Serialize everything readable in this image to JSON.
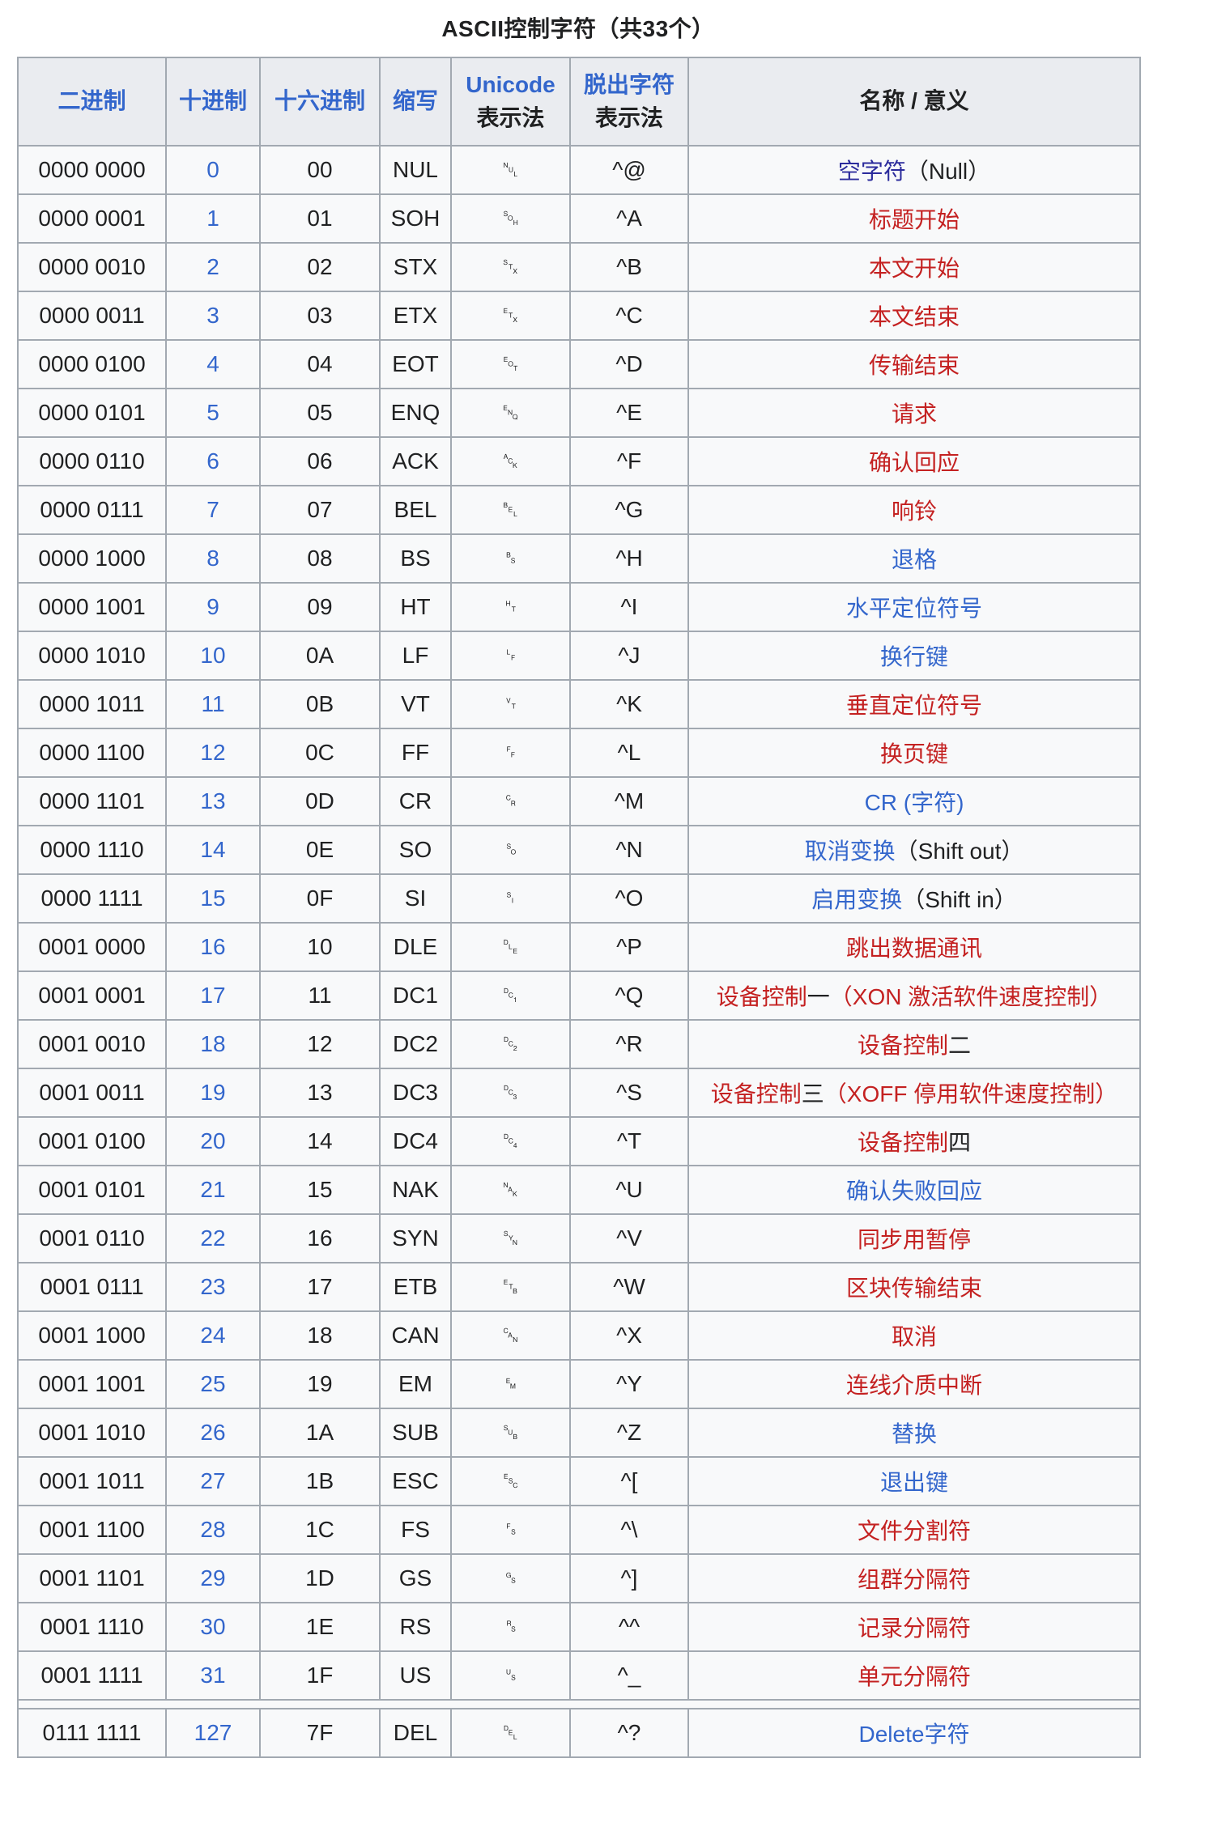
{
  "title": "ASCII控制字符（共33个）",
  "colors": {
    "text": "#202122",
    "link_blue": "#3366cc",
    "link_red": "#c42121",
    "link_visited": "#2b2b9c",
    "border": "#a2a9b1",
    "header_bg": "#eaecf0",
    "row_bg": "#f8f9fa",
    "page_bg": "#ffffff"
  },
  "header": {
    "binary": "二进制",
    "decimal": "十进制",
    "hex": "十六进制",
    "abbr": "缩写",
    "unicode_line1": "Unicode",
    "unicode_line2": "表示法",
    "escape_line1": "脱出字符",
    "escape_line2": "表示法",
    "name": "名称 / 意义"
  },
  "rows": [
    {
      "binary": "0000 0000",
      "decimal": "0",
      "hex": "00",
      "abbr": "NUL",
      "unicode": "␀",
      "caret": "^@",
      "name": [
        {
          "text": "空字符",
          "style": "visited"
        },
        {
          "text": "（Null）",
          "style": "plain"
        }
      ]
    },
    {
      "binary": "0000 0001",
      "decimal": "1",
      "hex": "01",
      "abbr": "SOH",
      "unicode": "␁",
      "caret": "^A",
      "name": [
        {
          "text": "标题开始",
          "style": "red"
        }
      ]
    },
    {
      "binary": "0000 0010",
      "decimal": "2",
      "hex": "02",
      "abbr": "STX",
      "unicode": "␂",
      "caret": "^B",
      "name": [
        {
          "text": "本文开始",
          "style": "red"
        }
      ]
    },
    {
      "binary": "0000 0011",
      "decimal": "3",
      "hex": "03",
      "abbr": "ETX",
      "unicode": "␃",
      "caret": "^C",
      "name": [
        {
          "text": "本文结束",
          "style": "red"
        }
      ]
    },
    {
      "binary": "0000 0100",
      "decimal": "4",
      "hex": "04",
      "abbr": "EOT",
      "unicode": "␄",
      "caret": "^D",
      "name": [
        {
          "text": "传输结束",
          "style": "red"
        }
      ]
    },
    {
      "binary": "0000 0101",
      "decimal": "5",
      "hex": "05",
      "abbr": "ENQ",
      "unicode": "␅",
      "caret": "^E",
      "name": [
        {
          "text": "请求",
          "style": "red"
        }
      ]
    },
    {
      "binary": "0000 0110",
      "decimal": "6",
      "hex": "06",
      "abbr": "ACK",
      "unicode": "␆",
      "caret": "^F",
      "name": [
        {
          "text": "确认回应",
          "style": "red"
        }
      ]
    },
    {
      "binary": "0000 0111",
      "decimal": "7",
      "hex": "07",
      "abbr": "BEL",
      "unicode": "␇",
      "caret": "^G",
      "name": [
        {
          "text": "响铃",
          "style": "red"
        }
      ]
    },
    {
      "binary": "0000 1000",
      "decimal": "8",
      "hex": "08",
      "abbr": "BS",
      "unicode": "␈",
      "caret": "^H",
      "name": [
        {
          "text": "退格",
          "style": "blue"
        }
      ]
    },
    {
      "binary": "0000 1001",
      "decimal": "9",
      "hex": "09",
      "abbr": "HT",
      "unicode": "␉",
      "caret": "^I",
      "name": [
        {
          "text": "水平定位符号",
          "style": "blue"
        }
      ]
    },
    {
      "binary": "0000 1010",
      "decimal": "10",
      "hex": "0A",
      "abbr": "LF",
      "unicode": "␊",
      "caret": "^J",
      "name": [
        {
          "text": "换行键",
          "style": "blue"
        }
      ]
    },
    {
      "binary": "0000 1011",
      "decimal": "11",
      "hex": "0B",
      "abbr": "VT",
      "unicode": "␋",
      "caret": "^K",
      "name": [
        {
          "text": "垂直定位符号",
          "style": "red"
        }
      ]
    },
    {
      "binary": "0000 1100",
      "decimal": "12",
      "hex": "0C",
      "abbr": "FF",
      "unicode": "␌",
      "caret": "^L",
      "name": [
        {
          "text": "换页键",
          "style": "red"
        }
      ]
    },
    {
      "binary": "0000 1101",
      "decimal": "13",
      "hex": "0D",
      "abbr": "CR",
      "unicode": "␍",
      "caret": "^M",
      "name": [
        {
          "text": "CR (字符)",
          "style": "blue"
        }
      ]
    },
    {
      "binary": "0000 1110",
      "decimal": "14",
      "hex": "0E",
      "abbr": "SO",
      "unicode": "␎",
      "caret": "^N",
      "name": [
        {
          "text": "取消变换",
          "style": "blue"
        },
        {
          "text": "（Shift out）",
          "style": "plain"
        }
      ]
    },
    {
      "binary": "0000 1111",
      "decimal": "15",
      "hex": "0F",
      "abbr": "SI",
      "unicode": "␏",
      "caret": "^O",
      "name": [
        {
          "text": "启用变换",
          "style": "blue"
        },
        {
          "text": "（Shift in）",
          "style": "plain"
        }
      ]
    },
    {
      "binary": "0001 0000",
      "decimal": "16",
      "hex": "10",
      "abbr": "DLE",
      "unicode": "␐",
      "caret": "^P",
      "name": [
        {
          "text": "跳出数据通讯",
          "style": "red"
        }
      ]
    },
    {
      "binary": "0001 0001",
      "decimal": "17",
      "hex": "11",
      "abbr": "DC1",
      "unicode": "␑",
      "caret": "^Q",
      "name": [
        {
          "text": "设备控制",
          "style": "red"
        },
        {
          "text": "一",
          "style": "plain"
        },
        {
          "text": "（XON 激活软件速度控制）",
          "style": "red"
        }
      ]
    },
    {
      "binary": "0001 0010",
      "decimal": "18",
      "hex": "12",
      "abbr": "DC2",
      "unicode": "␒",
      "caret": "^R",
      "name": [
        {
          "text": "设备控制",
          "style": "red"
        },
        {
          "text": "二",
          "style": "plain"
        }
      ]
    },
    {
      "binary": "0001 0011",
      "decimal": "19",
      "hex": "13",
      "abbr": "DC3",
      "unicode": "␓",
      "caret": "^S",
      "name": [
        {
          "text": "设备控制",
          "style": "red"
        },
        {
          "text": "三",
          "style": "plain"
        },
        {
          "text": "（XOFF 停用软件速度控制）",
          "style": "red"
        }
      ]
    },
    {
      "binary": "0001 0100",
      "decimal": "20",
      "hex": "14",
      "abbr": "DC4",
      "unicode": "␔",
      "caret": "^T",
      "name": [
        {
          "text": "设备控制",
          "style": "red"
        },
        {
          "text": "四",
          "style": "plain"
        }
      ]
    },
    {
      "binary": "0001 0101",
      "decimal": "21",
      "hex": "15",
      "abbr": "NAK",
      "unicode": "␕",
      "caret": "^U",
      "name": [
        {
          "text": "确认失败回应",
          "style": "blue"
        }
      ]
    },
    {
      "binary": "0001 0110",
      "decimal": "22",
      "hex": "16",
      "abbr": "SYN",
      "unicode": "␖",
      "caret": "^V",
      "name": [
        {
          "text": "同步用暂停",
          "style": "red"
        }
      ]
    },
    {
      "binary": "0001 0111",
      "decimal": "23",
      "hex": "17",
      "abbr": "ETB",
      "unicode": "␗",
      "caret": "^W",
      "name": [
        {
          "text": "区块传输结束",
          "style": "red"
        }
      ]
    },
    {
      "binary": "0001 1000",
      "decimal": "24",
      "hex": "18",
      "abbr": "CAN",
      "unicode": "␘",
      "caret": "^X",
      "name": [
        {
          "text": "取消",
          "style": "red"
        }
      ]
    },
    {
      "binary": "0001 1001",
      "decimal": "25",
      "hex": "19",
      "abbr": "EM",
      "unicode": "␙",
      "caret": "^Y",
      "name": [
        {
          "text": "连线介质中断",
          "style": "red"
        }
      ]
    },
    {
      "binary": "0001 1010",
      "decimal": "26",
      "hex": "1A",
      "abbr": "SUB",
      "unicode": "␚",
      "caret": "^Z",
      "name": [
        {
          "text": "替换",
          "style": "blue"
        }
      ]
    },
    {
      "binary": "0001 1011",
      "decimal": "27",
      "hex": "1B",
      "abbr": "ESC",
      "unicode": "␛",
      "caret": "^[",
      "name": [
        {
          "text": "退出键",
          "style": "blue"
        }
      ]
    },
    {
      "binary": "0001 1100",
      "decimal": "28",
      "hex": "1C",
      "abbr": "FS",
      "unicode": "␜",
      "caret": "^\\",
      "name": [
        {
          "text": "文件分割符",
          "style": "red"
        }
      ]
    },
    {
      "binary": "0001 1101",
      "decimal": "29",
      "hex": "1D",
      "abbr": "GS",
      "unicode": "␝",
      "caret": "^]",
      "name": [
        {
          "text": "组群分隔符",
          "style": "red"
        }
      ]
    },
    {
      "binary": "0001 1110",
      "decimal": "30",
      "hex": "1E",
      "abbr": "RS",
      "unicode": "␞",
      "caret": "^^",
      "name": [
        {
          "text": "记录分隔符",
          "style": "red"
        }
      ]
    },
    {
      "binary": "0001 1111",
      "decimal": "31",
      "hex": "1F",
      "abbr": "US",
      "unicode": "␟",
      "caret": "^_",
      "name": [
        {
          "text": "单元分隔符",
          "style": "red"
        }
      ]
    }
  ],
  "del_row": {
    "binary": "0111 1111",
    "decimal": "127",
    "hex": "7F",
    "abbr": "DEL",
    "unicode": "␡",
    "caret": "^?",
    "name": [
      {
        "text": "Delete字符",
        "style": "blue"
      }
    ]
  }
}
